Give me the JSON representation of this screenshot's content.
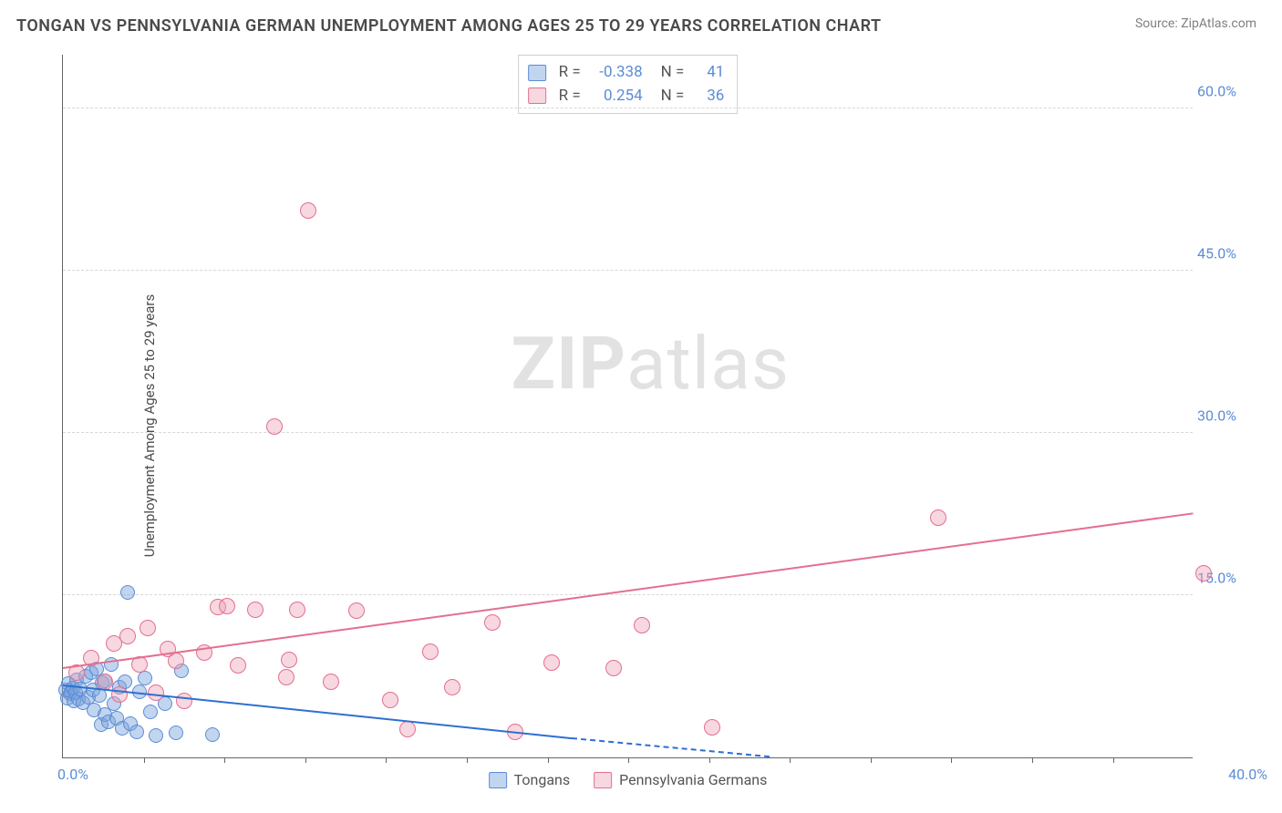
{
  "header": {
    "title": "TONGAN VS PENNSYLVANIA GERMAN UNEMPLOYMENT AMONG AGES 25 TO 29 YEARS CORRELATION CHART",
    "source_label": "Source: ",
    "source_value": "ZipAtlas.com"
  },
  "y_axis_label": "Unemployment Among Ages 25 to 29 years",
  "watermark": {
    "bold": "ZIP",
    "rest": "atlas"
  },
  "chart": {
    "type": "scatter",
    "xlim": [
      0,
      40
    ],
    "ylim": [
      0,
      65
    ],
    "x_ticks": {
      "first": "0.0%",
      "last": "40.0%",
      "nub_step": 2.86
    },
    "y_ticks": [
      {
        "v": 15,
        "label": "15.0%"
      },
      {
        "v": 30,
        "label": "30.0%"
      },
      {
        "v": 45,
        "label": "45.0%"
      },
      {
        "v": 60,
        "label": "60.0%"
      }
    ],
    "grid_color": "#d8d8d8",
    "background_color": "#ffffff",
    "series": [
      {
        "name": "Tongans",
        "color_fill": "rgba(120,162,219,0.45)",
        "color_stroke": "#5b8cd6",
        "marker_radius": 8,
        "points": [
          [
            0.1,
            6.2
          ],
          [
            0.15,
            5.5
          ],
          [
            0.2,
            6.8
          ],
          [
            0.25,
            5.9
          ],
          [
            0.3,
            6.1
          ],
          [
            0.35,
            6.4
          ],
          [
            0.4,
            5.2
          ],
          [
            0.45,
            6.0
          ],
          [
            0.5,
            7.2
          ],
          [
            0.55,
            5.4
          ],
          [
            0.6,
            6.3
          ],
          [
            0.7,
            5.1
          ],
          [
            0.8,
            7.5
          ],
          [
            0.9,
            5.6
          ],
          [
            1.0,
            7.8
          ],
          [
            1.05,
            6.2
          ],
          [
            1.1,
            4.4
          ],
          [
            1.2,
            8.2
          ],
          [
            1.3,
            5.7
          ],
          [
            1.35,
            3.0
          ],
          [
            1.4,
            6.9
          ],
          [
            1.5,
            4.0
          ],
          [
            1.5,
            7.1
          ],
          [
            1.6,
            3.3
          ],
          [
            1.7,
            8.6
          ],
          [
            1.8,
            5.0
          ],
          [
            1.9,
            3.6
          ],
          [
            2.0,
            6.5
          ],
          [
            2.1,
            2.7
          ],
          [
            2.2,
            7.0
          ],
          [
            2.3,
            15.3
          ],
          [
            2.4,
            3.1
          ],
          [
            2.6,
            2.4
          ],
          [
            2.7,
            6.1
          ],
          [
            2.9,
            7.3
          ],
          [
            3.1,
            4.2
          ],
          [
            3.3,
            2.0
          ],
          [
            3.6,
            5.0
          ],
          [
            4.0,
            2.3
          ],
          [
            4.2,
            8.0
          ],
          [
            5.3,
            2.1
          ]
        ],
        "trend": {
          "x1": 0,
          "y1": 6.6,
          "x2": 18,
          "y2": 1.7,
          "x2_dash": 25,
          "y2_dash": 0.0,
          "color": "#2f6fd1",
          "width": 2
        }
      },
      {
        "name": "Pennsylvania Germans",
        "color_fill": "rgba(236,160,180,0.42)",
        "color_stroke": "#e46f8f",
        "marker_radius": 9,
        "points": [
          [
            0.5,
            7.8
          ],
          [
            1.0,
            9.2
          ],
          [
            1.5,
            7.0
          ],
          [
            1.8,
            10.5
          ],
          [
            2.0,
            5.8
          ],
          [
            2.3,
            11.2
          ],
          [
            2.7,
            8.6
          ],
          [
            3.0,
            12.0
          ],
          [
            3.3,
            6.0
          ],
          [
            3.7,
            10.0
          ],
          [
            4.0,
            8.9
          ],
          [
            4.3,
            5.2
          ],
          [
            5.0,
            9.7
          ],
          [
            5.5,
            13.9
          ],
          [
            6.2,
            8.5
          ],
          [
            6.8,
            13.7
          ],
          [
            7.5,
            30.6
          ],
          [
            8.0,
            9.0
          ],
          [
            8.3,
            13.7
          ],
          [
            8.7,
            50.6
          ],
          [
            9.5,
            7.0
          ],
          [
            10.4,
            13.6
          ],
          [
            11.6,
            5.3
          ],
          [
            12.2,
            2.6
          ],
          [
            13.0,
            9.8
          ],
          [
            13.8,
            6.5
          ],
          [
            15.2,
            12.5
          ],
          [
            16.0,
            2.4
          ],
          [
            17.3,
            8.8
          ],
          [
            19.5,
            8.3
          ],
          [
            20.5,
            12.2
          ],
          [
            23.0,
            2.8
          ],
          [
            31.0,
            22.2
          ],
          [
            40.4,
            17.0
          ],
          [
            7.9,
            7.4
          ],
          [
            5.8,
            14.0
          ]
        ],
        "trend": {
          "x1": 0,
          "y1": 8.2,
          "x2": 40,
          "y2": 22.5,
          "color": "#e46f8f",
          "width": 2
        }
      }
    ]
  },
  "stats": {
    "rows": [
      {
        "swatch_fill": "rgba(120,162,219,0.45)",
        "swatch_stroke": "#5b8cd6",
        "r_label": "R =",
        "r_value": "-0.338",
        "n_label": "N =",
        "n_value": "41"
      },
      {
        "swatch_fill": "rgba(236,160,180,0.42)",
        "swatch_stroke": "#e46f8f",
        "r_label": "R =",
        "r_value": "0.254",
        "n_label": "N =",
        "n_value": "36"
      }
    ]
  },
  "legend_bottom": [
    {
      "swatch_fill": "rgba(120,162,219,0.45)",
      "swatch_stroke": "#5b8cd6",
      "label": "Tongans"
    },
    {
      "swatch_fill": "rgba(236,160,180,0.42)",
      "swatch_stroke": "#e46f8f",
      "label": "Pennsylvania Germans"
    }
  ]
}
